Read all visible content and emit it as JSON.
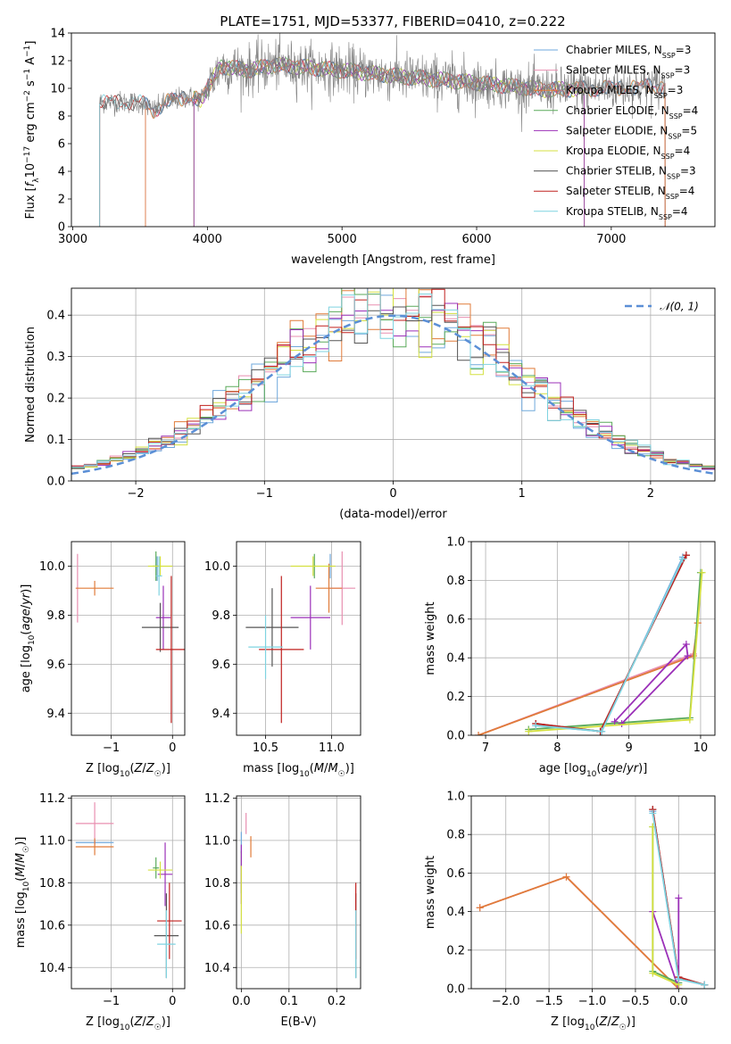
{
  "title": "PLATE=1751, MJD=53377, FIBERID=0410, z=0.222",
  "colors": [
    "#6fa8dc",
    "#e88fb0",
    "#e07b39",
    "#5aaa5a",
    "#9b30b8",
    "#d4e040",
    "#555555",
    "#c0201e",
    "#7fd3e0"
  ],
  "chart_data": [
    {
      "type": "line",
      "name": "spectrum",
      "xlabel": "wavelength [Angstrom, rest frame]",
      "ylabel": "Flux [f_λ 10^-17 erg cm^-2 s^-1 A^-1]",
      "xlim": [
        2990,
        7770
      ],
      "ylim": [
        0,
        14
      ],
      "xticks": [
        3000,
        4000,
        5000,
        6000,
        7000
      ],
      "yticks": [
        0,
        2,
        4,
        6,
        8,
        10,
        12,
        14
      ],
      "grid": false,
      "legend_position": "top-right",
      "legend": [
        {
          "label": "Chabrier MILES, N",
          "sub": "SSP",
          "suffix": "=3"
        },
        {
          "label": "Salpeter MILES, N",
          "sub": "SSP",
          "suffix": "=3"
        },
        {
          "label": "Kroupa MILES, N",
          "sub": "SSP",
          "suffix": "=3"
        },
        {
          "label": "Chabrier ELODIE, N",
          "sub": "SSP",
          "suffix": "=4"
        },
        {
          "label": "Salpeter ELODIE, N",
          "sub": "SSP",
          "suffix": "=5"
        },
        {
          "label": "Kroupa ELODIE, N",
          "sub": "SSP",
          "suffix": "=4"
        },
        {
          "label": "Chabrier STELIB, N",
          "sub": "SSP",
          "suffix": "=3"
        },
        {
          "label": "Salpeter STELIB, N",
          "sub": "SSP",
          "suffix": "=4"
        },
        {
          "label": "Kroupa STELIB, N",
          "sub": "SSP",
          "suffix": "=4"
        }
      ],
      "model_coverage": [
        {
          "name": "MILES",
          "x_start": 3540,
          "x_end": 7400
        },
        {
          "name": "ELODIE",
          "x_start": 3900,
          "x_end": 6800
        },
        {
          "name": "STELIB",
          "x_start": 3200,
          "x_end": 7400
        }
      ],
      "continuum_anchor_points": [
        {
          "x": 3200,
          "y": 9.0
        },
        {
          "x": 3500,
          "y": 9.0
        },
        {
          "x": 3600,
          "y": 8.4
        },
        {
          "x": 3700,
          "y": 9.0
        },
        {
          "x": 3850,
          "y": 9.4
        },
        {
          "x": 3950,
          "y": 9.2
        },
        {
          "x": 4100,
          "y": 11.6
        },
        {
          "x": 4300,
          "y": 11.3
        },
        {
          "x": 4500,
          "y": 11.7
        },
        {
          "x": 5000,
          "y": 11.3
        },
        {
          "x": 5500,
          "y": 10.8
        },
        {
          "x": 6000,
          "y": 10.4
        },
        {
          "x": 6500,
          "y": 9.9
        },
        {
          "x": 7000,
          "y": 10.0
        },
        {
          "x": 7400,
          "y": 10.2
        }
      ]
    },
    {
      "type": "histogram",
      "name": "residuals",
      "xlabel": "(data-model)/error",
      "ylabel": "Normed distribution",
      "xlim": [
        -2.5,
        2.5
      ],
      "ylim": [
        0,
        0.465
      ],
      "xticks": [
        -2,
        -1,
        0,
        1,
        2
      ],
      "yticks": [
        0.0,
        0.1,
        0.2,
        0.3,
        0.4
      ],
      "grid": true,
      "legend_position": "top-right",
      "reference_curve": {
        "label": "𝒩(0, 1)",
        "mean": 0,
        "sigma": 1
      },
      "bin_edges_start": -2.5,
      "bin_width": 0.1
    },
    {
      "type": "scatter",
      "name": "age-vs-metallicity",
      "xlabel": "Z [log10(Z/Z☉)]",
      "ylabel": "age [log10(age/yr)]",
      "xlim": [
        -1.65,
        0.2
      ],
      "ylim": [
        9.31,
        10.1
      ],
      "xticks": [
        -1,
        0
      ],
      "yticks": [
        9.4,
        9.6,
        9.8,
        10.0
      ],
      "grid": true,
      "points": [
        {
          "s": 0,
          "x": -0.25,
          "y": 9.99,
          "xe": 0.0,
          "ye": 0.05
        },
        {
          "s": 1,
          "x": -1.55,
          "y": 9.91,
          "xe": 0.0,
          "ye": 0.14
        },
        {
          "s": 2,
          "x": -1.27,
          "y": 9.91,
          "xe": 0.31,
          "ye": 0.03
        },
        {
          "s": 3,
          "x": -0.27,
          "y": 10.0,
          "xe": 0.05,
          "ye": 0.06
        },
        {
          "s": 4,
          "x": -0.15,
          "y": 9.79,
          "xe": 0.12,
          "ye": 0.13
        },
        {
          "s": 5,
          "x": -0.2,
          "y": 10.0,
          "xe": 0.2,
          "ye": 0.04
        },
        {
          "s": 6,
          "x": -0.2,
          "y": 9.75,
          "xe": 0.3,
          "ye": 0.1
        },
        {
          "s": 7,
          "x": -0.02,
          "y": 9.66,
          "xe": 0.25,
          "ye": 0.3
        },
        {
          "s": 8,
          "x": -0.22,
          "y": 9.96,
          "xe": 0.05,
          "ye": 0.08
        }
      ]
    },
    {
      "type": "scatter",
      "name": "age-vs-mass",
      "xlabel": "mass [log10(M/M☉)]",
      "ylabel": "",
      "xlim": [
        10.28,
        11.22
      ],
      "ylim": [
        9.31,
        10.1
      ],
      "xticks": [
        10.5,
        11.0
      ],
      "yticks": [
        9.4,
        9.6,
        9.8,
        10.0
      ],
      "grid": true,
      "points": [
        {
          "s": 0,
          "x": 10.99,
          "y": 10.0,
          "xe": 0.0,
          "ye": 0.05
        },
        {
          "s": 1,
          "x": 11.08,
          "y": 9.91,
          "xe": 0.1,
          "ye": 0.15
        },
        {
          "s": 2,
          "x": 10.98,
          "y": 9.91,
          "xe": 0.1,
          "ye": 0.1
        },
        {
          "s": 3,
          "x": 10.87,
          "y": 10.0,
          "xe": 0.01,
          "ye": 0.05
        },
        {
          "s": 4,
          "x": 10.84,
          "y": 9.79,
          "xe": 0.15,
          "ye": 0.13
        },
        {
          "s": 5,
          "x": 10.86,
          "y": 10.0,
          "xe": 0.17,
          "ye": 0.04
        },
        {
          "s": 6,
          "x": 10.55,
          "y": 9.75,
          "xe": 0.2,
          "ye": 0.16
        },
        {
          "s": 7,
          "x": 10.62,
          "y": 9.66,
          "xe": 0.17,
          "ye": 0.3
        },
        {
          "s": 8,
          "x": 10.5,
          "y": 9.67,
          "xe": 0.13,
          "ye": 0.13
        }
      ]
    },
    {
      "type": "line",
      "name": "mass-weight-vs-age",
      "xlabel": "age [log10(age/yr)]",
      "ylabel": "mass weight",
      "xlim": [
        6.8,
        10.2
      ],
      "ylim": [
        0,
        1
      ],
      "xticks": [
        7,
        8,
        9,
        10
      ],
      "yticks": [
        0.0,
        0.2,
        0.4,
        0.6,
        0.8,
        1.0
      ],
      "grid": true,
      "series": [
        {
          "s": 0,
          "x": [
            7.7,
            8.62,
            9.75
          ],
          "y": [
            0.05,
            0.02,
            0.92
          ]
        },
        {
          "s": 1,
          "x": [
            6.9,
            9.9,
            9.96
          ],
          "y": [
            0.0,
            0.42,
            0.58
          ]
        },
        {
          "s": 2,
          "x": [
            6.9,
            9.9,
            9.96
          ],
          "y": [
            0.0,
            0.41,
            0.58
          ]
        },
        {
          "s": 3,
          "x": [
            7.6,
            9.85,
            10.0
          ],
          "y": [
            0.03,
            0.09,
            0.84
          ]
        },
        {
          "s": 4,
          "x": [
            8.8,
            9.8,
            9.82,
            8.9
          ],
          "y": [
            0.07,
            0.47,
            0.41,
            0.06
          ]
        },
        {
          "s": 5,
          "x": [
            7.6,
            9.85,
            10.02
          ],
          "y": [
            0.02,
            0.08,
            0.84
          ]
        },
        {
          "s": 6,
          "x": [
            7.7,
            8.6,
            9.8
          ],
          "y": [
            0.06,
            0.02,
            0.93
          ]
        },
        {
          "s": 7,
          "x": [
            7.7,
            8.6,
            9.8
          ],
          "y": [
            0.06,
            0.02,
            0.93
          ]
        },
        {
          "s": 8,
          "x": [
            7.7,
            8.62,
            9.75
          ],
          "y": [
            0.05,
            0.02,
            0.91
          ]
        }
      ]
    },
    {
      "type": "scatter",
      "name": "mass-vs-metallicity",
      "xlabel": "Z [log10(Z/Z☉)]",
      "ylabel": "mass [log10(M/M☉)]",
      "xlim": [
        -1.65,
        0.2
      ],
      "ylim": [
        10.3,
        11.21
      ],
      "xticks": [
        -1,
        0
      ],
      "yticks": [
        10.4,
        10.6,
        10.8,
        11.0,
        11.2
      ],
      "grid": true,
      "points": [
        {
          "s": 0,
          "x": -1.27,
          "y": 10.99,
          "xe": 0.31,
          "ye": 0.01
        },
        {
          "s": 1,
          "x": -1.27,
          "y": 11.08,
          "xe": 0.31,
          "ye": 0.1
        },
        {
          "s": 2,
          "x": -1.27,
          "y": 10.97,
          "xe": 0.31,
          "ye": 0.04
        },
        {
          "s": 3,
          "x": -0.27,
          "y": 10.87,
          "xe": 0.05,
          "ye": 0.05
        },
        {
          "s": 4,
          "x": -0.12,
          "y": 10.84,
          "xe": 0.12,
          "ye": 0.15
        },
        {
          "s": 5,
          "x": -0.2,
          "y": 10.86,
          "xe": 0.2,
          "ye": 0.04
        },
        {
          "s": 6,
          "x": -0.1,
          "y": 10.55,
          "xe": 0.2,
          "ye": 0.2
        },
        {
          "s": 7,
          "x": -0.05,
          "y": 10.62,
          "xe": 0.2,
          "ye": 0.18
        },
        {
          "s": 8,
          "x": -0.1,
          "y": 10.51,
          "xe": 0.15,
          "ye": 0.16
        }
      ]
    },
    {
      "type": "scatter",
      "name": "mass-vs-extinction",
      "xlabel": "E(B-V)",
      "ylabel": "",
      "xlim": [
        -0.01,
        0.25
      ],
      "ylim": [
        10.3,
        11.21
      ],
      "xticks": [
        0.0,
        0.1,
        0.2
      ],
      "yticks": [
        10.4,
        10.6,
        10.8,
        11.0,
        11.2
      ],
      "grid": true,
      "points": [
        {
          "s": 0,
          "x": 0.0,
          "y": 10.99,
          "xe": 0.0,
          "ye": 0.05
        },
        {
          "s": 1,
          "x": 0.01,
          "y": 11.08,
          "xe": 0.0,
          "ye": 0.05
        },
        {
          "s": 2,
          "x": 0.02,
          "y": 10.97,
          "xe": 0.0,
          "ye": 0.05
        },
        {
          "s": 3,
          "x": 0.0,
          "y": 10.85,
          "xe": 0.0,
          "ye": 0.1
        },
        {
          "s": 4,
          "x": 0.0,
          "y": 10.84,
          "xe": 0.0,
          "ye": 0.14
        },
        {
          "s": 5,
          "x": 0.0,
          "y": 10.72,
          "xe": 0.0,
          "ye": 0.16
        },
        {
          "s": 6,
          "x": 0.24,
          "y": 10.55,
          "xe": 0.0,
          "ye": 0.2
        },
        {
          "s": 7,
          "x": 0.24,
          "y": 10.62,
          "xe": 0.0,
          "ye": 0.18
        },
        {
          "s": 8,
          "x": 0.24,
          "y": 10.51,
          "xe": 0.0,
          "ye": 0.16
        }
      ]
    },
    {
      "type": "line",
      "name": "mass-weight-vs-metallicity",
      "xlabel": "Z [log10(Z/Z☉)]",
      "ylabel": "mass weight",
      "xlim": [
        -2.4,
        0.42
      ],
      "ylim": [
        0,
        1
      ],
      "xticks": [
        -2.0,
        -1.5,
        -1.0,
        -0.5,
        0.0
      ],
      "yticks": [
        0.0,
        0.2,
        0.4,
        0.6,
        0.8,
        1.0
      ],
      "grid": true,
      "series": [
        {
          "s": 0,
          "x": [
            -0.3,
            0.0,
            0.3
          ],
          "y": [
            0.92,
            0.05,
            0.02
          ]
        },
        {
          "s": 1,
          "x": [
            -2.3,
            -1.3,
            0.0
          ],
          "y": [
            0.42,
            0.58,
            0.0
          ]
        },
        {
          "s": 2,
          "x": [
            -2.3,
            -1.3,
            0.0
          ],
          "y": [
            0.42,
            0.58,
            0.0
          ]
        },
        {
          "s": 3,
          "x": [
            -0.3,
            -0.3,
            0.0
          ],
          "y": [
            0.84,
            0.09,
            0.03
          ]
        },
        {
          "s": 4,
          "x": [
            -0.3,
            0.0,
            0.0
          ],
          "y": [
            0.4,
            0.0,
            0.47
          ]
        },
        {
          "s": 5,
          "x": [
            -0.3,
            -0.3,
            0.0
          ],
          "y": [
            0.84,
            0.08,
            0.02
          ]
        },
        {
          "s": 6,
          "x": [
            -0.3,
            0.0,
            0.3
          ],
          "y": [
            0.93,
            0.06,
            0.02
          ]
        },
        {
          "s": 7,
          "x": [
            -0.3,
            0.0,
            0.3
          ],
          "y": [
            0.93,
            0.06,
            0.02
          ]
        },
        {
          "s": 8,
          "x": [
            -0.3,
            0.0,
            0.3
          ],
          "y": [
            0.91,
            0.05,
            0.02
          ]
        }
      ]
    }
  ]
}
